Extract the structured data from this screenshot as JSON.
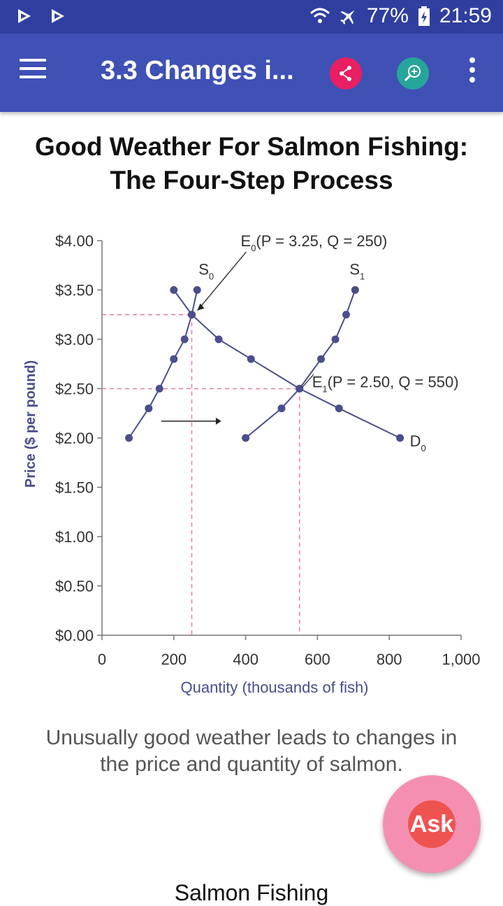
{
  "status_bar": {
    "battery": "77%",
    "time": "21:59"
  },
  "app_bar": {
    "title": "3.3 Changes i..."
  },
  "content": {
    "heading_line1": "Good Weather For Salmon Fishing:",
    "heading_line2": "The Four-Step Process",
    "caption_line1": "Unusually good weather leads to changes in",
    "caption_line2": "the price and quantity of salmon.",
    "next_heading": "Salmon Fishing",
    "ask_label": "Ask"
  },
  "colors": {
    "status_bar": "#303F9F",
    "app_bar": "#3F51B5",
    "chart_blue": "#4A4E8C",
    "guide_pink": "#E07AA8"
  },
  "chart_data": {
    "type": "line",
    "xlabel": "Quantity (thousands of fish)",
    "ylabel": "Price ($ per pound)",
    "xlim": [
      0,
      1000
    ],
    "ylim": [
      0,
      4
    ],
    "x_ticks": [
      "0",
      "200",
      "400",
      "600",
      "800",
      "1,000"
    ],
    "y_ticks": [
      "$0.00",
      "$0.50",
      "$1.00",
      "$1.50",
      "$2.00",
      "$2.50",
      "$3.00",
      "$3.50",
      "$4.00"
    ],
    "series": [
      {
        "name": "S0",
        "points": [
          [
            75,
            2.0
          ],
          [
            130,
            2.3
          ],
          [
            160,
            2.5
          ],
          [
            200,
            2.8
          ],
          [
            230,
            3.0
          ],
          [
            250,
            3.25
          ],
          [
            265,
            3.5
          ]
        ]
      },
      {
        "name": "S1",
        "points": [
          [
            400,
            2.0
          ],
          [
            500,
            2.3
          ],
          [
            550,
            2.5
          ],
          [
            610,
            2.8
          ],
          [
            650,
            3.0
          ],
          [
            680,
            3.25
          ],
          [
            705,
            3.5
          ]
        ]
      },
      {
        "name": "D0",
        "points": [
          [
            200,
            3.5
          ],
          [
            250,
            3.25
          ],
          [
            325,
            3.0
          ],
          [
            415,
            2.8
          ],
          [
            550,
            2.5
          ],
          [
            660,
            2.3
          ],
          [
            830,
            2.0
          ]
        ]
      }
    ],
    "series_labels": [
      {
        "main": "S",
        "sub": "0"
      },
      {
        "main": "S",
        "sub": "1"
      },
      {
        "main": "D",
        "sub": "0"
      }
    ],
    "annotations": [
      {
        "main": "E",
        "sub": "0",
        "text": "(P = 3.25, Q = 250)",
        "x": 250,
        "y": 3.25
      },
      {
        "main": "E",
        "sub": "1",
        "text": "(P = 2.50, Q = 550)",
        "x": 550,
        "y": 2.5
      }
    ]
  }
}
